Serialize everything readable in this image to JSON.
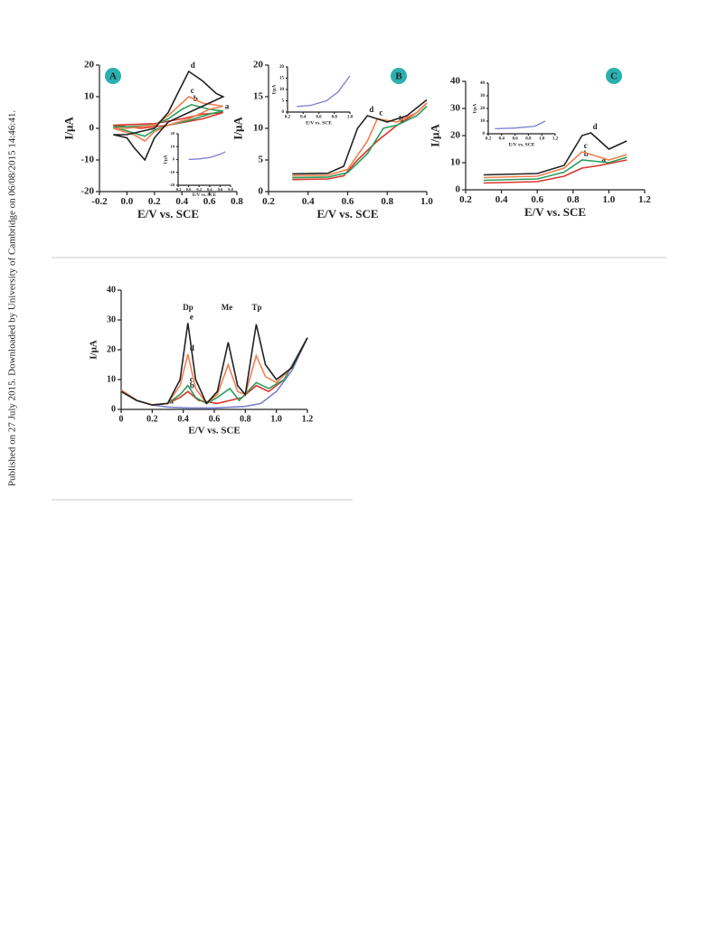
{
  "sidebar": "Published on 27 July 2015. Downloaded by University of Cambridge on 06/08/2015 14:46:41.",
  "chart_data": [
    {
      "type": "line",
      "panel_label": "A",
      "xlabel": "E/V vs. SCE",
      "ylabel": "I/μA",
      "xlim": [
        -0.2,
        0.8
      ],
      "ylim": [
        -20,
        20
      ],
      "xticks": [
        -0.2,
        {
          "value": 0,
          "label": "0.0"
        },
        0.2,
        0.4,
        0.6,
        0.8
      ],
      "yticks": [
        -20,
        -10,
        0,
        10,
        20
      ],
      "series": [
        {
          "name": "a",
          "color": "#d9352b",
          "x": [
            -0.1,
            0.2,
            0.4,
            0.55,
            0.7,
            0.55,
            0.3,
            0.1,
            -0.1
          ],
          "values": [
            1,
            1.5,
            3,
            4.5,
            5,
            3,
            1,
            0,
            1
          ]
        },
        {
          "name": "b",
          "color": "#2a9d5c",
          "x": [
            -0.1,
            0,
            0.2,
            0.3,
            0.4,
            0.47,
            0.6,
            0.7,
            0.6,
            0.45,
            0.3,
            0.2,
            0.13,
            -0.1
          ],
          "values": [
            0.5,
            0.5,
            1,
            3,
            6,
            7.5,
            6,
            5.5,
            4.5,
            2.5,
            1,
            -0.5,
            -2.5,
            0.5
          ]
        },
        {
          "name": "c",
          "color": "#f08050",
          "x": [
            -0.1,
            0,
            0.2,
            0.3,
            0.4,
            0.45,
            0.55,
            0.7,
            0.6,
            0.45,
            0.3,
            0.2,
            0.13,
            0.05,
            -0.1
          ],
          "values": [
            0,
            0,
            1,
            4,
            8,
            10,
            8,
            7,
            6,
            3,
            1,
            -1,
            -4,
            -2,
            0
          ]
        },
        {
          "name": "d",
          "color": "#222222",
          "x": [
            -0.1,
            0,
            0.2,
            0.3,
            0.38,
            0.45,
            0.55,
            0.65,
            0.7,
            0.6,
            0.45,
            0.3,
            0.2,
            0.13,
            0.05,
            0,
            -0.1
          ],
          "values": [
            -2,
            -2,
            0,
            5,
            12,
            18,
            15,
            11,
            10,
            8,
            5,
            2,
            -3,
            -10,
            -6,
            -3,
            -2
          ]
        }
      ]
    },
    {
      "type": "line",
      "xlabel": "E/V vs. SCE",
      "ylabel": "I/μA",
      "xlim": [
        -0.2,
        0.8
      ],
      "ylim": [
        -20,
        20
      ],
      "xticks": [
        -0.2,
        {
          "value": 0,
          "label": "0.0"
        },
        0.2,
        0.4,
        0.6,
        0.8
      ],
      "yticks": [
        -20,
        -10,
        0,
        10,
        20
      ],
      "series": [
        {
          "color": "#7a7fd0",
          "x": [
            0,
            0.2,
            0.4,
            0.6,
            0.7
          ],
          "values": [
            0,
            0.5,
            1.5,
            4,
            6
          ]
        }
      ]
    },
    {
      "type": "line",
      "panel_label": "B",
      "xlabel": "E/V vs. SCE",
      "ylabel": "I/μA",
      "xlim": [
        0.2,
        1.0
      ],
      "ylim": [
        0,
        20
      ],
      "xticks": [
        0.2,
        0.4,
        0.6,
        0.8,
        {
          "value": 1,
          "label": "1.0"
        }
      ],
      "yticks": [
        0,
        5,
        10,
        15,
        20
      ],
      "series": [
        {
          "name": "a",
          "color": "#d9352b",
          "x": [
            0.32,
            0.5,
            0.58,
            0.65,
            0.75,
            0.85,
            0.95,
            1.0
          ],
          "values": [
            1.9,
            2,
            2.5,
            5,
            8,
            10.5,
            12.5,
            14
          ]
        },
        {
          "name": "b",
          "color": "#2a9d5c",
          "x": [
            0.32,
            0.5,
            0.6,
            0.7,
            0.78,
            0.85,
            0.95,
            1.0
          ],
          "values": [
            2.2,
            2.3,
            3,
            6,
            10,
            10.5,
            12,
            13.5
          ]
        },
        {
          "name": "c",
          "color": "#f08050",
          "x": [
            0.32,
            0.5,
            0.6,
            0.7,
            0.75,
            0.85,
            0.95,
            1.0
          ],
          "values": [
            2.5,
            2.6,
            3.5,
            8,
            11.5,
            11,
            12.5,
            14
          ]
        },
        {
          "name": "d",
          "color": "#222222",
          "x": [
            0.32,
            0.5,
            0.58,
            0.65,
            0.7,
            0.8,
            0.9,
            1.0
          ],
          "values": [
            2.8,
            2.9,
            4,
            10,
            12,
            11,
            12,
            14.5
          ]
        }
      ]
    },
    {
      "type": "line",
      "xlabel": "E/V vs. SCE",
      "ylabel": "I/μA",
      "xlim": [
        0.2,
        1.0
      ],
      "ylim": [
        0,
        20
      ],
      "xticks": [
        0.2,
        0.4,
        0.6,
        0.8,
        {
          "value": 1,
          "label": "1.0"
        }
      ],
      "yticks": [
        0,
        5,
        10,
        15,
        20
      ],
      "series": [
        {
          "color": "#7a7fd0",
          "x": [
            0.32,
            0.5,
            0.7,
            0.85,
            1.0
          ],
          "values": [
            2.5,
            3,
            5,
            9,
            16
          ]
        }
      ]
    },
    {
      "type": "line",
      "panel_label": "C",
      "xlabel": "E/V vs. SCE",
      "ylabel": "I/μA",
      "xlim": [
        0.2,
        1.2
      ],
      "ylim": [
        0,
        40
      ],
      "xticks": [
        0.2,
        0.4,
        0.6,
        0.8,
        {
          "value": 1,
          "label": "1.0"
        },
        1.2
      ],
      "yticks": [
        0,
        10,
        20,
        30,
        40
      ],
      "series": [
        {
          "name": "a",
          "color": "#d9352b",
          "x": [
            0.3,
            0.6,
            0.75,
            0.85,
            0.95,
            1.1
          ],
          "values": [
            2.5,
            3,
            5,
            8,
            9,
            11
          ]
        },
        {
          "name": "b",
          "color": "#2a9d5c",
          "x": [
            0.3,
            0.6,
            0.75,
            0.85,
            1.0,
            1.1
          ],
          "values": [
            3.5,
            4,
            6.5,
            11,
            10,
            12
          ]
        },
        {
          "name": "c",
          "color": "#f08050",
          "x": [
            0.3,
            0.6,
            0.75,
            0.85,
            0.9,
            1.0,
            1.1
          ],
          "values": [
            4.5,
            5,
            8,
            14,
            13,
            11,
            13
          ]
        },
        {
          "name": "d",
          "color": "#222222",
          "x": [
            0.3,
            0.6,
            0.75,
            0.85,
            0.9,
            1.0,
            1.1
          ],
          "values": [
            5.5,
            6,
            9,
            20,
            21,
            15,
            18
          ]
        }
      ]
    },
    {
      "type": "line",
      "xlabel": "E/V vs. SCE",
      "ylabel": "I/μA",
      "xlim": [
        0.2,
        1.2
      ],
      "ylim": [
        0,
        40
      ],
      "xticks": [
        0.2,
        0.4,
        0.6,
        0.8,
        {
          "value": 1,
          "label": "1.0"
        },
        1.2
      ],
      "yticks": [
        0,
        10,
        20,
        30,
        40
      ],
      "series": [
        {
          "color": "#7a7fd0",
          "x": [
            0.3,
            0.6,
            0.9,
            1.05
          ],
          "values": [
            4,
            4.5,
            6,
            10
          ]
        }
      ]
    },
    {
      "type": "line",
      "xlabel": "E/V vs. SCE",
      "ylabel": "I/μA",
      "xlim": [
        0,
        1.2
      ],
      "ylim": [
        0,
        40
      ],
      "xticks": [
        0,
        0.2,
        0.4,
        0.6,
        0.8,
        {
          "value": 1,
          "label": "1.0"
        },
        1.2
      ],
      "yticks": [
        0,
        10,
        20,
        30,
        40
      ],
      "annotations": [
        "Dp",
        "Me",
        "Tp"
      ],
      "series": [
        {
          "name": "a",
          "color": "#7a7fd0",
          "x": [
            0,
            0.1,
            0.2,
            0.3,
            0.43,
            0.6,
            0.8,
            0.9,
            1.0,
            1.1,
            1.2
          ],
          "values": [
            6,
            3,
            1.5,
            0.8,
            0.5,
            0.5,
            1,
            2,
            6,
            13,
            24
          ]
        },
        {
          "name": "b",
          "color": "#d9352b",
          "x": [
            0,
            0.1,
            0.2,
            0.3,
            0.38,
            0.43,
            0.5,
            0.62,
            0.7,
            0.78,
            0.87,
            0.95,
            1.05,
            1.2
          ],
          "values": [
            6.5,
            3,
            1.5,
            2,
            4,
            6,
            3,
            2,
            3,
            4,
            8,
            6,
            10,
            24
          ]
        },
        {
          "name": "c",
          "color": "#2a9d5c",
          "x": [
            0,
            0.1,
            0.2,
            0.3,
            0.38,
            0.43,
            0.48,
            0.55,
            0.62,
            0.7,
            0.76,
            0.87,
            0.95,
            1.05,
            1.2
          ],
          "values": [
            6.5,
            3,
            1.5,
            2,
            5,
            8,
            4,
            2,
            4,
            7,
            3,
            9,
            7,
            10,
            24
          ]
        },
        {
          "name": "d",
          "color": "#f08050",
          "x": [
            0,
            0.1,
            0.2,
            0.3,
            0.38,
            0.43,
            0.48,
            0.55,
            0.62,
            0.69,
            0.75,
            0.8,
            0.87,
            0.93,
            1.0,
            1.1,
            1.2
          ],
          "values": [
            6.5,
            3,
            1.5,
            2,
            8,
            18.5,
            7,
            2,
            5,
            15,
            6,
            5,
            18,
            11,
            9,
            14,
            24
          ]
        },
        {
          "name": "e",
          "color": "#222222",
          "x": [
            0,
            0.1,
            0.2,
            0.3,
            0.38,
            0.43,
            0.48,
            0.55,
            0.62,
            0.69,
            0.75,
            0.8,
            0.87,
            0.93,
            1.0,
            1.1,
            1.2
          ],
          "values": [
            6,
            3,
            1.5,
            2,
            10,
            29,
            10,
            2,
            6,
            22.5,
            8,
            5,
            28.5,
            15,
            10,
            14,
            24
          ]
        }
      ]
    }
  ]
}
